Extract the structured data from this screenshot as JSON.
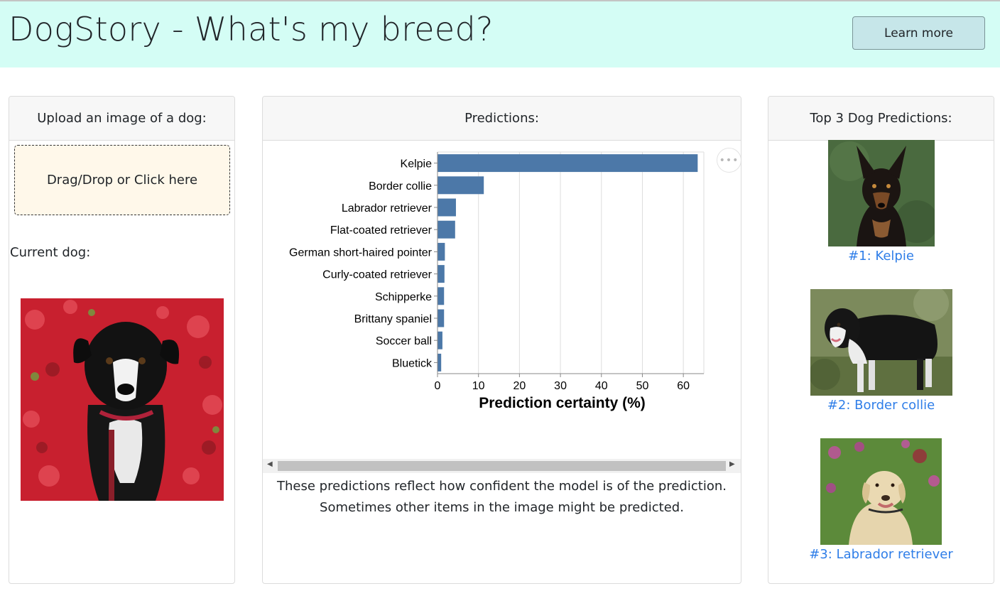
{
  "app": {
    "title": "DogStory - What's my breed?",
    "learn_more": "Learn more"
  },
  "upload": {
    "header": "Upload an image of a dog:",
    "dropzone": "Drag/Drop or Click here",
    "current_label": "Current dog:"
  },
  "predictions": {
    "header": "Predictions:",
    "caption_line1": "These predictions reflect how confident the model is of the prediction.",
    "caption_line2": "Sometimes other items in the image might be predicted."
  },
  "top3": {
    "header": "Top 3 Dog Predictions:",
    "items": [
      {
        "label": "#1: Kelpie"
      },
      {
        "label": "#2: Border collie"
      },
      {
        "label": "#3: Labrador retriever"
      }
    ]
  },
  "chart_data": {
    "type": "bar",
    "orientation": "horizontal",
    "categories": [
      "Kelpie",
      "Border collie",
      "Labrador retriever",
      "Flat-coated retriever",
      "German short-haired pointer",
      "Curly-coated retriever",
      "Schipperke",
      "Brittany spaniel",
      "Soccer ball",
      "Bluetick"
    ],
    "values": [
      63.5,
      11.3,
      4.5,
      4.3,
      1.8,
      1.7,
      1.6,
      1.6,
      1.2,
      0.9
    ],
    "xlabel": "Prediction certainty (%)",
    "ylabel": "",
    "xlim": [
      0,
      65
    ],
    "xticks": [
      0,
      10,
      20,
      30,
      40,
      50,
      60
    ],
    "grid": true,
    "bar_color": "#4c78a8"
  },
  "colors": {
    "header_bg": "#d4fdf5",
    "button_bg": "#c6e6e9",
    "dropzone_bg": "#fff8ea",
    "link": "#2f7ee8"
  }
}
